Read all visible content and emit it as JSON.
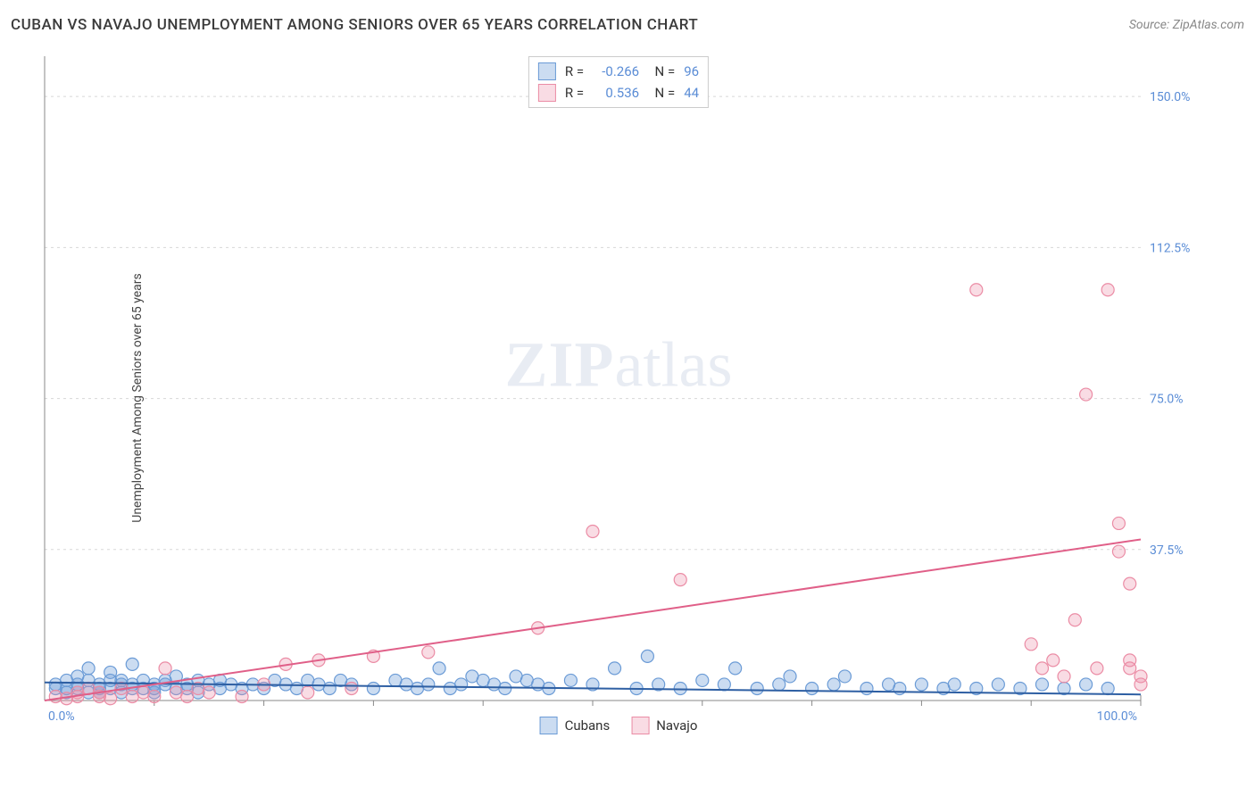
{
  "header": {
    "title": "CUBAN VS NAVAJO UNEMPLOYMENT AMONG SENIORS OVER 65 YEARS CORRELATION CHART",
    "source": "Source: ZipAtlas.com"
  },
  "ylabel": "Unemployment Among Seniors over 65 years",
  "watermark": {
    "bold": "ZIP",
    "rest": "atlas"
  },
  "axes": {
    "xmin": 0,
    "xmax": 100,
    "ymin": 0,
    "ymax": 160,
    "x_ticks": [
      0,
      100
    ],
    "x_tick_labels": [
      "0.0%",
      "100.0%"
    ],
    "y_ticks": [
      37.5,
      75.0,
      112.5,
      150.0
    ],
    "y_tick_labels": [
      "37.5%",
      "75.0%",
      "112.5%",
      "150.0%"
    ],
    "grid_color": "#d8d8d8",
    "axis_color": "#888888",
    "label_color": "#5b8dd6",
    "minor_x_ticks": [
      10,
      20,
      30,
      40,
      50,
      60,
      70,
      80,
      90
    ]
  },
  "series": {
    "cubans": {
      "label": "Cubans",
      "fill": "rgba(107,155,214,0.35)",
      "stroke": "#6b9bd6",
      "line_color": "#2e5fa3",
      "line_width": 2,
      "R": "-0.266",
      "N": "96",
      "trend": {
        "x1": 0,
        "y1": 4.5,
        "x2": 100,
        "y2": 1.5
      },
      "points": [
        [
          1,
          3
        ],
        [
          1,
          4
        ],
        [
          2,
          2
        ],
        [
          2,
          5
        ],
        [
          2,
          3
        ],
        [
          3,
          4
        ],
        [
          3,
          6
        ],
        [
          3,
          3
        ],
        [
          4,
          5
        ],
        [
          4,
          2
        ],
        [
          4,
          8
        ],
        [
          5,
          3
        ],
        [
          5,
          4
        ],
        [
          5,
          2
        ],
        [
          6,
          5
        ],
        [
          6,
          3
        ],
        [
          6,
          7
        ],
        [
          7,
          4
        ],
        [
          7,
          2
        ],
        [
          7,
          5
        ],
        [
          8,
          3
        ],
        [
          8,
          4
        ],
        [
          8,
          9
        ],
        [
          9,
          3
        ],
        [
          9,
          5
        ],
        [
          10,
          4
        ],
        [
          10,
          2
        ],
        [
          10,
          3
        ],
        [
          11,
          5
        ],
        [
          11,
          4
        ],
        [
          12,
          3
        ],
        [
          12,
          6
        ],
        [
          13,
          4
        ],
        [
          13,
          3
        ],
        [
          14,
          5
        ],
        [
          14,
          2
        ],
        [
          15,
          4
        ],
        [
          16,
          3
        ],
        [
          16,
          5
        ],
        [
          17,
          4
        ],
        [
          18,
          3
        ],
        [
          19,
          4
        ],
        [
          20,
          3
        ],
        [
          21,
          5
        ],
        [
          22,
          4
        ],
        [
          23,
          3
        ],
        [
          24,
          5
        ],
        [
          25,
          4
        ],
        [
          26,
          3
        ],
        [
          27,
          5
        ],
        [
          28,
          4
        ],
        [
          30,
          3
        ],
        [
          32,
          5
        ],
        [
          33,
          4
        ],
        [
          34,
          3
        ],
        [
          35,
          4
        ],
        [
          36,
          8
        ],
        [
          37,
          3
        ],
        [
          38,
          4
        ],
        [
          39,
          6
        ],
        [
          40,
          5
        ],
        [
          41,
          4
        ],
        [
          42,
          3
        ],
        [
          43,
          6
        ],
        [
          44,
          5
        ],
        [
          45,
          4
        ],
        [
          46,
          3
        ],
        [
          48,
          5
        ],
        [
          50,
          4
        ],
        [
          52,
          8
        ],
        [
          54,
          3
        ],
        [
          55,
          11
        ],
        [
          56,
          4
        ],
        [
          58,
          3
        ],
        [
          60,
          5
        ],
        [
          62,
          4
        ],
        [
          63,
          8
        ],
        [
          65,
          3
        ],
        [
          67,
          4
        ],
        [
          68,
          6
        ],
        [
          70,
          3
        ],
        [
          72,
          4
        ],
        [
          73,
          6
        ],
        [
          75,
          3
        ],
        [
          77,
          4
        ],
        [
          78,
          3
        ],
        [
          80,
          4
        ],
        [
          82,
          3
        ],
        [
          83,
          4
        ],
        [
          85,
          3
        ],
        [
          87,
          4
        ],
        [
          89,
          3
        ],
        [
          91,
          4
        ],
        [
          93,
          3
        ],
        [
          95,
          4
        ],
        [
          97,
          3
        ]
      ]
    },
    "navajo": {
      "label": "Navajo",
      "fill": "rgba(235,140,165,0.30)",
      "stroke": "#eb8ca5",
      "line_color": "#e05f88",
      "line_width": 2,
      "R": "0.536",
      "N": "44",
      "trend": {
        "x1": 0,
        "y1": 0,
        "x2": 100,
        "y2": 40
      },
      "points": [
        [
          1,
          1
        ],
        [
          2,
          0.5
        ],
        [
          3,
          2
        ],
        [
          3,
          1
        ],
        [
          4,
          3
        ],
        [
          5,
          1
        ],
        [
          5,
          2
        ],
        [
          6,
          0.5
        ],
        [
          7,
          3
        ],
        [
          8,
          1
        ],
        [
          9,
          2
        ],
        [
          10,
          1
        ],
        [
          11,
          8
        ],
        [
          12,
          2
        ],
        [
          13,
          1
        ],
        [
          14,
          3
        ],
        [
          15,
          2
        ],
        [
          18,
          1
        ],
        [
          20,
          4
        ],
        [
          22,
          9
        ],
        [
          24,
          2
        ],
        [
          25,
          10
        ],
        [
          28,
          3
        ],
        [
          30,
          11
        ],
        [
          35,
          12
        ],
        [
          45,
          18
        ],
        [
          50,
          42
        ],
        [
          58,
          30
        ],
        [
          85,
          102
        ],
        [
          90,
          14
        ],
        [
          91,
          8
        ],
        [
          92,
          10
        ],
        [
          93,
          6
        ],
        [
          94,
          20
        ],
        [
          95,
          76
        ],
        [
          96,
          8
        ],
        [
          97,
          102
        ],
        [
          98,
          37
        ],
        [
          98,
          44
        ],
        [
          99,
          10
        ],
        [
          99,
          29
        ],
        [
          99,
          8
        ],
        [
          100,
          6
        ],
        [
          100,
          4
        ]
      ]
    }
  },
  "legend_order": [
    "cubans",
    "navajo"
  ]
}
